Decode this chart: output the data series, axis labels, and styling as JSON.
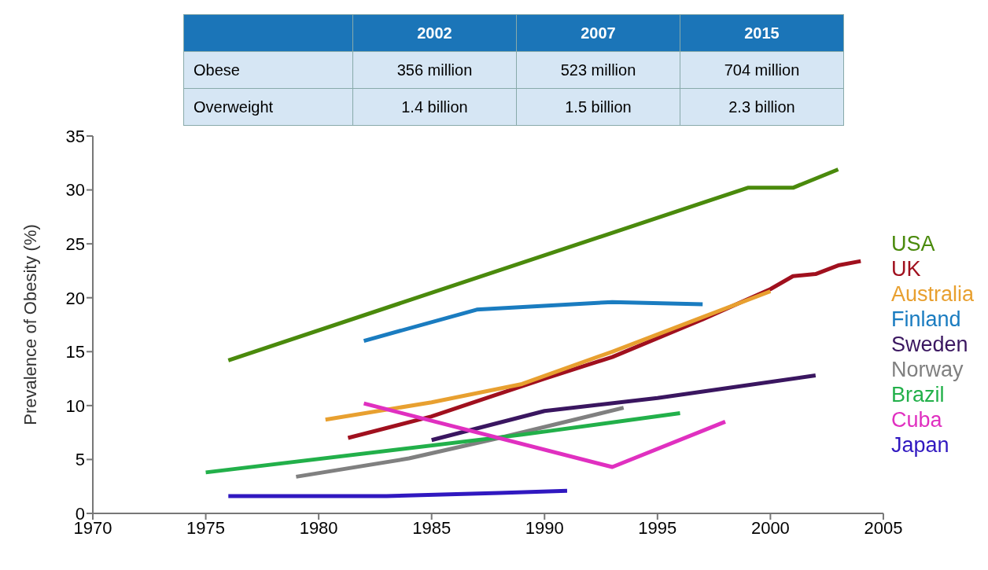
{
  "chart_data": {
    "type": "line",
    "ylabel": "Prevalence of Obesity (%)",
    "xlim": [
      1970,
      2005
    ],
    "xticks": [
      1970,
      1975,
      1980,
      1985,
      1990,
      1995,
      2000,
      2005
    ],
    "ylim": [
      0,
      35
    ],
    "yticks": [
      0,
      5,
      10,
      15,
      20,
      25,
      30,
      35
    ],
    "grid": false,
    "legend": "right",
    "marker": "none",
    "line_style": "solid",
    "annotations": [
      "2002",
      "2007",
      "2015",
      "Obese",
      "356 million",
      "523 million",
      "704 million",
      "Overweight",
      "1.4 billion",
      "1.5 billion",
      "2.3 billion"
    ],
    "series": [
      {
        "name": "USA",
        "color": "#4a8a0c",
        "x": [
          1976,
          1999,
          2001,
          2003
        ],
        "values": [
          14.2,
          30.2,
          30.2,
          31.9
        ]
      },
      {
        "name": "UK",
        "color": "#a0101e",
        "x": [
          1981.3,
          1985,
          1990,
          1993,
          1997,
          2000,
          2001,
          2002,
          2003,
          2004
        ],
        "values": [
          7,
          9,
          12.5,
          14.5,
          18,
          20.8,
          22,
          22.2,
          23,
          23.4
        ]
      },
      {
        "name": "Australia",
        "color": "#e8a030",
        "x": [
          1980.3,
          1985,
          1989,
          1993,
          1997,
          2000
        ],
        "values": [
          8.7,
          10.3,
          12,
          15,
          18.2,
          20.6
        ]
      },
      {
        "name": "Finland",
        "color": "#1a7cc0",
        "x": [
          1982,
          1987,
          1993,
          1997
        ],
        "values": [
          16,
          18.9,
          19.6,
          19.4
        ]
      },
      {
        "name": "Sweden",
        "color": "#3a1660",
        "x": [
          1985,
          1990,
          1995,
          2002
        ],
        "values": [
          6.8,
          9.5,
          10.7,
          12.8
        ]
      },
      {
        "name": "Norway",
        "color": "#808080",
        "x": [
          1979,
          1984,
          1988,
          1993.5
        ],
        "values": [
          3.4,
          5.1,
          7,
          9.8
        ]
      },
      {
        "name": "Brazil",
        "color": "#22b04a",
        "x": [
          1975,
          1989,
          1996
        ],
        "values": [
          3.8,
          7.3,
          9.3
        ]
      },
      {
        "name": "Cuba",
        "color": "#e030c0",
        "x": [
          1982,
          1993,
          1998
        ],
        "values": [
          10.2,
          4.3,
          8.5
        ]
      },
      {
        "name": "Japan",
        "color": "#3018c0",
        "x": [
          1976,
          1983,
          1988,
          1991
        ],
        "values": [
          1.6,
          1.6,
          1.9,
          2.1
        ]
      }
    ]
  }
}
